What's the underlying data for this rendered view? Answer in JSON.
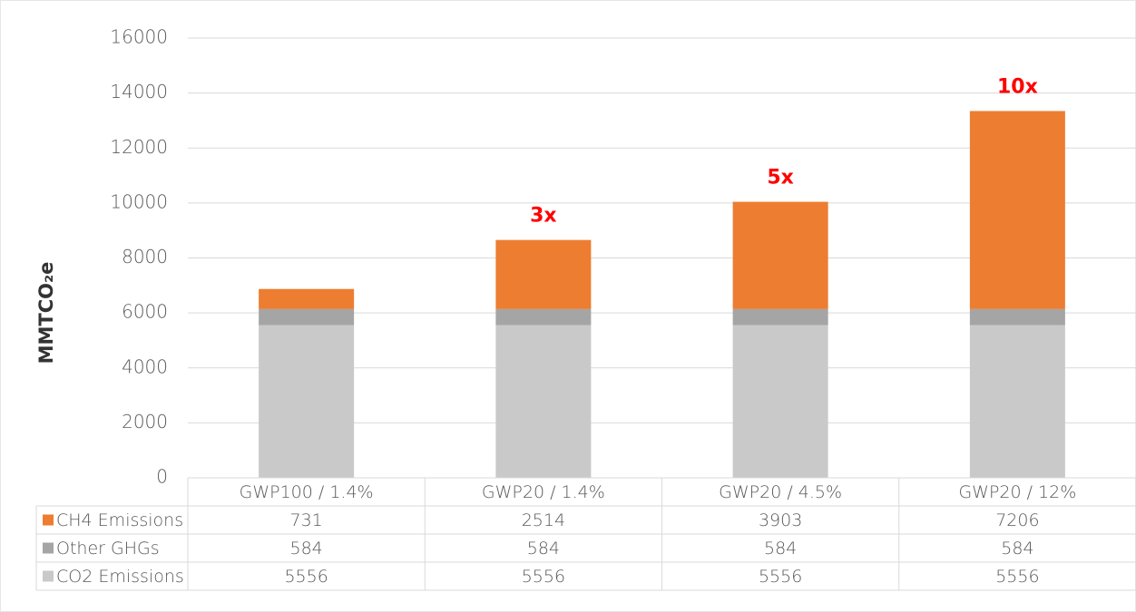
{
  "chart_data": {
    "type": "stacked_bar",
    "y_label": "MMTCO₂e",
    "categories": [
      "GWP100 / 1.4%",
      "GWP20 / 1.4%",
      "GWP20 / 4.5%",
      "GWP20 / 12%"
    ],
    "series": [
      {
        "name": "CO2 Emissions",
        "color": "#c9c9c9",
        "values": [
          5556,
          5556,
          5556,
          5556
        ]
      },
      {
        "name": "Other GHGs",
        "color": "#a5a5a5",
        "values": [
          584,
          584,
          584,
          584
        ]
      },
      {
        "name": "CH4 Emissions",
        "color": "#ed7d31",
        "values": [
          731,
          2514,
          3903,
          7206
        ]
      }
    ],
    "annotations": [
      null,
      "3x",
      "5x",
      "10x"
    ],
    "annotation_color": "#ff0000",
    "ylim": [
      0,
      16000
    ],
    "yticks": [
      0,
      2000,
      4000,
      6000,
      8000,
      10000,
      12000,
      14000,
      16000
    ],
    "grid": true
  }
}
